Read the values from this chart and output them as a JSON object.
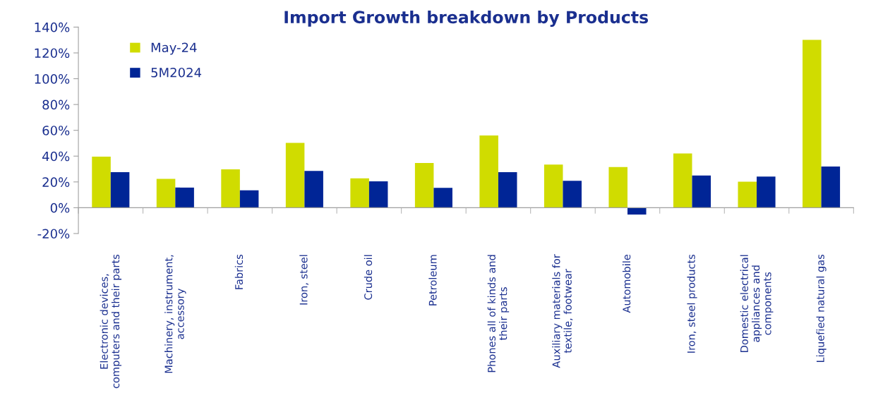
{
  "chart_data": {
    "type": "bar",
    "title": "Import Growth breakdown by Products",
    "categories": [
      "Electronic devices,\ncomputers and their parts",
      "Machinery, instrument,\naccessory",
      "Fabrics",
      "Iron, steel",
      "Crude oil",
      "Petroleum",
      "Phones all of kinds and\ntheir parts",
      "Auxiliary materials for\ntextile, footwear",
      "Automobile",
      "Iron, steel products",
      "Domestic electrical\nappliances and\ncomponents",
      "Liquefied natural gas"
    ],
    "series": [
      {
        "name": "May-24",
        "color": "#d0dc00",
        "values": [
          39.6,
          22.4,
          29.7,
          50.3,
          22.8,
          34.7,
          56,
          33.5,
          31.5,
          42,
          20.2,
          130.1
        ]
      },
      {
        "name": "5M2024",
        "color": "#002596",
        "values": [
          27.5,
          15.6,
          13.5,
          28.5,
          20.4,
          15.4,
          27.5,
          20.8,
          -5.3,
          25,
          24.2,
          31.9
        ]
      }
    ],
    "ylim": [
      -20,
      140
    ],
    "yticks": [
      {
        "value": -20,
        "label": "-20%"
      },
      {
        "value": 0,
        "label": "0%"
      },
      {
        "value": 20,
        "label": "20%"
      },
      {
        "value": 40,
        "label": "40%"
      },
      {
        "value": 60,
        "label": "60%"
      },
      {
        "value": 80,
        "label": "80%"
      },
      {
        "value": 100,
        "label": "100%"
      },
      {
        "value": 120,
        "label": "120%"
      },
      {
        "value": 140,
        "label": "140%"
      }
    ],
    "legend": "top left"
  }
}
